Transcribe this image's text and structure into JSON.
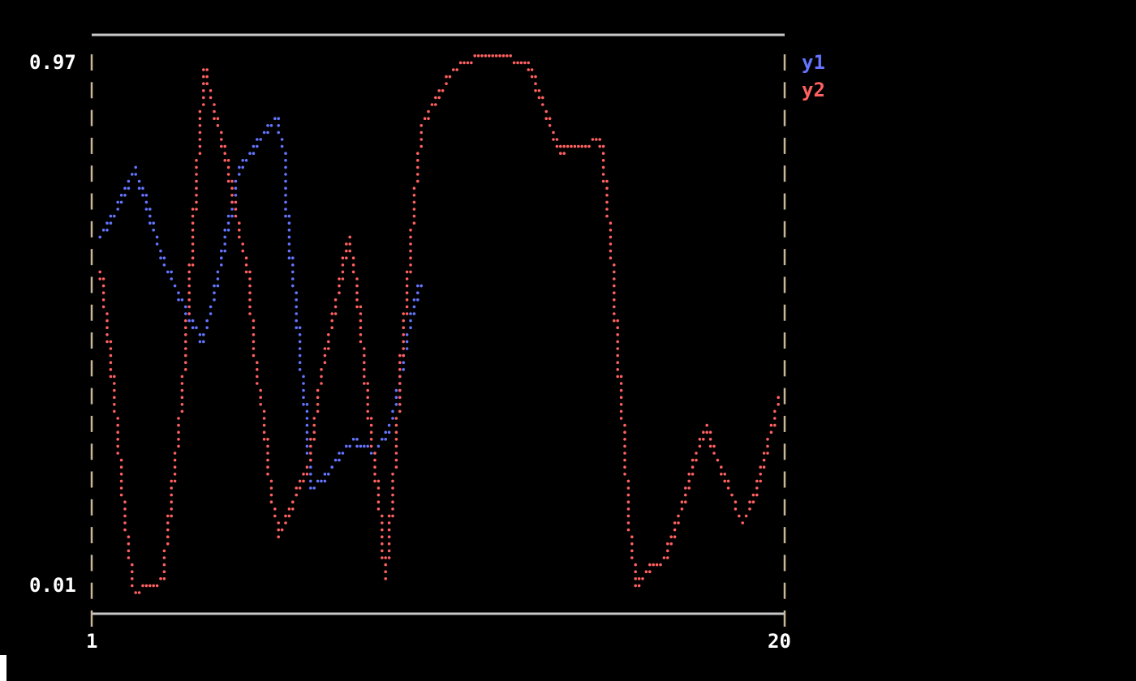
{
  "chart_data": {
    "type": "line",
    "title": "",
    "xlabel": "",
    "ylabel": "",
    "xlim": [
      1,
      20
    ],
    "ylim": [
      0.01,
      0.97
    ],
    "x_tick_labels": [
      "1",
      "20"
    ],
    "y_tick_labels": [
      "0.97",
      "0.01"
    ],
    "grid": false,
    "legend_placement": "right",
    "series": [
      {
        "name": "y1",
        "color": "#6474ff",
        "x": [
          1.11,
          1.57,
          2.02,
          2.36,
          2.81,
          3.15,
          3.6,
          3.94,
          4.28,
          4.62,
          4.96,
          5.52,
          5.98,
          6.2,
          6.32,
          6.54,
          6.66,
          6.84,
          6.95,
          7.33,
          7.79,
          8.13,
          8.69,
          9.14,
          9.48,
          9.71,
          9.98
        ],
        "y": [
          0.65,
          0.7,
          0.77,
          0.71,
          0.61,
          0.56,
          0.5,
          0.46,
          0.55,
          0.66,
          0.77,
          0.82,
          0.86,
          0.8,
          0.66,
          0.53,
          0.42,
          0.32,
          0.2,
          0.21,
          0.26,
          0.28,
          0.26,
          0.3,
          0.4,
          0.49,
          0.56
        ]
      },
      {
        "name": "y2",
        "color": "#ff6060",
        "x": [
          1.11,
          1.34,
          1.57,
          1.79,
          2.02,
          2.36,
          2.81,
          3.15,
          3.38,
          3.6,
          3.83,
          3.99,
          4.28,
          4.62,
          4.85,
          5.19,
          5.41,
          5.64,
          5.86,
          6.09,
          6.43,
          6.88,
          7.22,
          7.56,
          7.79,
          8.01,
          8.24,
          8.47,
          8.69,
          8.92,
          9.03,
          9.26,
          9.48,
          9.71,
          9.94,
          10.05,
          10.5,
          10.95,
          11.63,
          12.31,
          12.99,
          13.44,
          13.9,
          14.35,
          15.03,
          15.21,
          15.37,
          15.52,
          15.71,
          15.82,
          16.05,
          16.38,
          16.84,
          17.29,
          17.63,
          17.97,
          18.19,
          18.53,
          18.99,
          19.33,
          19.67,
          20.0
        ],
        "y": [
          0.58,
          0.45,
          0.29,
          0.13,
          0.01,
          0.02,
          0.03,
          0.23,
          0.37,
          0.59,
          0.81,
          0.95,
          0.87,
          0.78,
          0.69,
          0.59,
          0.42,
          0.32,
          0.18,
          0.11,
          0.17,
          0.23,
          0.39,
          0.5,
          0.57,
          0.65,
          0.55,
          0.39,
          0.26,
          0.13,
          0.03,
          0.2,
          0.43,
          0.61,
          0.78,
          0.85,
          0.9,
          0.95,
          0.97,
          0.97,
          0.96,
          0.88,
          0.8,
          0.81,
          0.82,
          0.71,
          0.59,
          0.42,
          0.27,
          0.13,
          0.02,
          0.05,
          0.07,
          0.16,
          0.24,
          0.31,
          0.26,
          0.21,
          0.13,
          0.18,
          0.27,
          0.36
        ]
      }
    ]
  },
  "colors": {
    "frame": "#c8c8c8",
    "axis": "#c8b896"
  }
}
